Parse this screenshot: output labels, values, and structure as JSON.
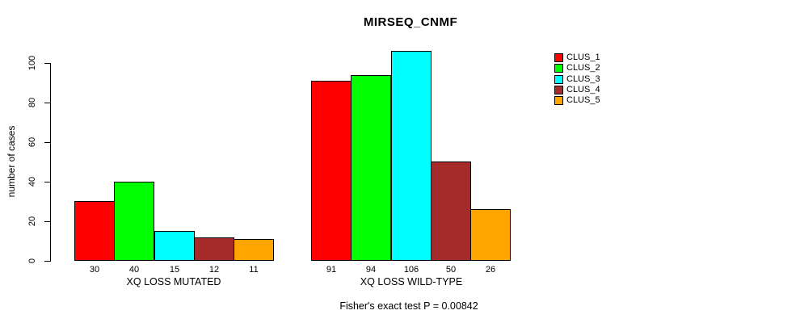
{
  "title": "MIRSEQ_CNMF",
  "chart_data": {
    "type": "bar",
    "title": "MIRSEQ_CNMF",
    "xlabel": "",
    "ylabel": "number of cases",
    "categories": [
      "XQ LOSS MUTATED",
      "XQ LOSS WILD-TYPE"
    ],
    "series": [
      {
        "name": "CLUS_1",
        "color": "#ff0000",
        "values": [
          30,
          91
        ]
      },
      {
        "name": "CLUS_2",
        "color": "#00ff00",
        "values": [
          40,
          94
        ]
      },
      {
        "name": "CLUS_3",
        "color": "#00ffff",
        "values": [
          15,
          106
        ]
      },
      {
        "name": "CLUS_4",
        "color": "#a52a2a",
        "values": [
          12,
          50
        ]
      },
      {
        "name": "CLUS_5",
        "color": "#ffa500",
        "values": [
          11,
          26
        ]
      }
    ],
    "bar_value_labels": [
      [
        30,
        40,
        15,
        12,
        11
      ],
      [
        91,
        94,
        106,
        50,
        26
      ]
    ],
    "yticks": [
      0,
      20,
      40,
      60,
      80,
      100
    ],
    "ylim": [
      0,
      107
    ],
    "grid": false,
    "legend_position": "right",
    "legend_labels": [
      "CLUS_1",
      "CLUS_2",
      "CLUS_3",
      "CLUS_4",
      "CLUS_5"
    ],
    "annotation": "Fisher's exact test P = 0.00842"
  }
}
